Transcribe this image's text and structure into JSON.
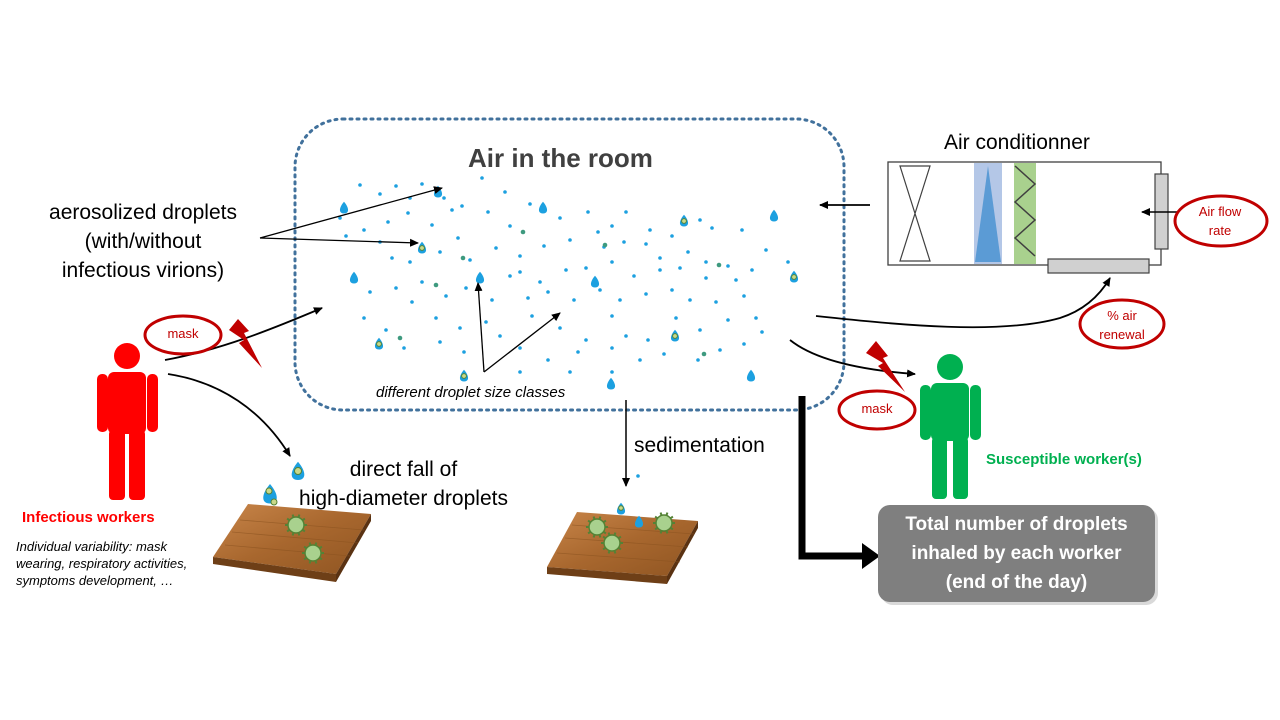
{
  "room": {
    "title": "Air in the room"
  },
  "aerosol_label": {
    "line1": "aerosolized droplets",
    "line2": "(with/without",
    "line3": "infectious virions)"
  },
  "air_conditioner": {
    "title": "Air conditionner",
    "airflow_line1": "Air flow",
    "airflow_line2": "rate",
    "renewal_line1": "% air",
    "renewal_line2": "renewal"
  },
  "mask_label_1": "mask",
  "mask_label_2": "mask",
  "droplet_sizes_label": "different droplet size classes",
  "sedimentation_label": "sedimentation",
  "direct_fall": {
    "line1": "direct fall of",
    "line2": "high-diameter droplets"
  },
  "infectious": {
    "title": "Infectious workers",
    "note": "Individual variability: mask wearing, respiratory activities, symptoms development, …"
  },
  "susceptible": {
    "title": "Susceptible worker(s)"
  },
  "total_box": {
    "line1": "Total number of droplets",
    "line2": "inhaled by each worker",
    "line3": "(end of the day)"
  },
  "colors": {
    "infectious": "#ff0000",
    "susceptible": "#00b050",
    "mask_accent": "#c00000",
    "droplet": "#1ca0e0",
    "total_box": "#7f7f7f",
    "room_border": "#41719c"
  },
  "icons": [
    "droplet-icon",
    "virion-icon",
    "lightning-icon",
    "person-icon",
    "table-icon",
    "filter-icon",
    "fan-icon"
  ]
}
